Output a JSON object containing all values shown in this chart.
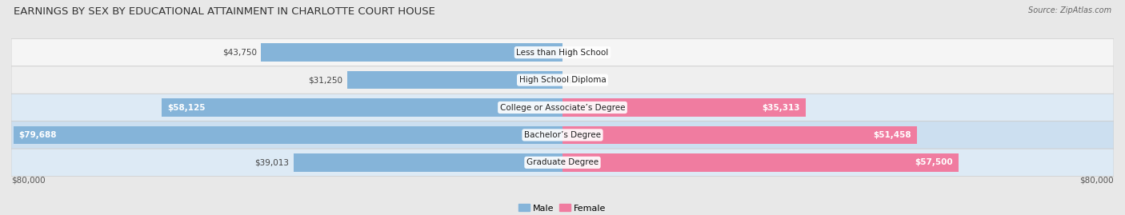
{
  "title": "EARNINGS BY SEX BY EDUCATIONAL ATTAINMENT IN CHARLOTTE COURT HOUSE",
  "source": "Source: ZipAtlas.com",
  "categories": [
    "Less than High School",
    "High School Diploma",
    "College or Associate’s Degree",
    "Bachelor’s Degree",
    "Graduate Degree"
  ],
  "male_values": [
    43750,
    31250,
    58125,
    79688,
    39013
  ],
  "female_values": [
    0,
    0,
    35313,
    51458,
    57500
  ],
  "male_color": "#85b4d9",
  "female_color": "#f07ca0",
  "axis_max": 80000,
  "male_label": "Male",
  "female_label": "Female",
  "row_colors": [
    "#f0f0f0",
    "#e8e8e8",
    "#dce8f0",
    "#d0e4f0",
    "#dce8f0"
  ],
  "title_fontsize": 9.5,
  "source_fontsize": 7,
  "value_fontsize": 7.5,
  "cat_fontsize": 7.5,
  "legend_fontsize": 8,
  "axis_label_fontsize": 7.5
}
